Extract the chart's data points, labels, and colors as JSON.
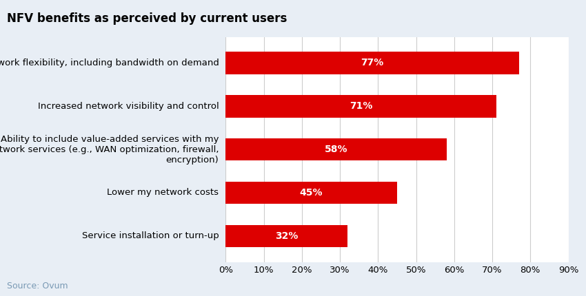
{
  "title": "NFV benefits as perceived by current users",
  "categories": [
    "Service installation or turn-up",
    "Lower my network costs",
    "Ability to include value-added services with my\nnetwork services (e.g., WAN optimization, firewall,\nencryption)",
    "Increased network visibility and control",
    "Network flexibility, including bandwidth on demand"
  ],
  "values": [
    32,
    45,
    58,
    71,
    77
  ],
  "bar_color": "#dd0000",
  "title_bg_color": "#c8d8ea",
  "chart_bg_color": "#e8eef5",
  "plot_bg_color": "#ffffff",
  "text_color": "#000000",
  "bar_label_color": "#ffffff",
  "grid_color": "#cccccc",
  "source_text": "Source: Ovum",
  "source_color": "#7a9ab5",
  "xlim": [
    0,
    90
  ],
  "xticks": [
    0,
    10,
    20,
    30,
    40,
    50,
    60,
    70,
    80,
    90
  ],
  "xtick_labels": [
    "0%",
    "10%",
    "20%",
    "30%",
    "40%",
    "50%",
    "60%",
    "70%",
    "80%",
    "90%"
  ],
  "title_fontsize": 12,
  "label_fontsize": 9.5,
  "bar_label_fontsize": 10,
  "source_fontsize": 9
}
